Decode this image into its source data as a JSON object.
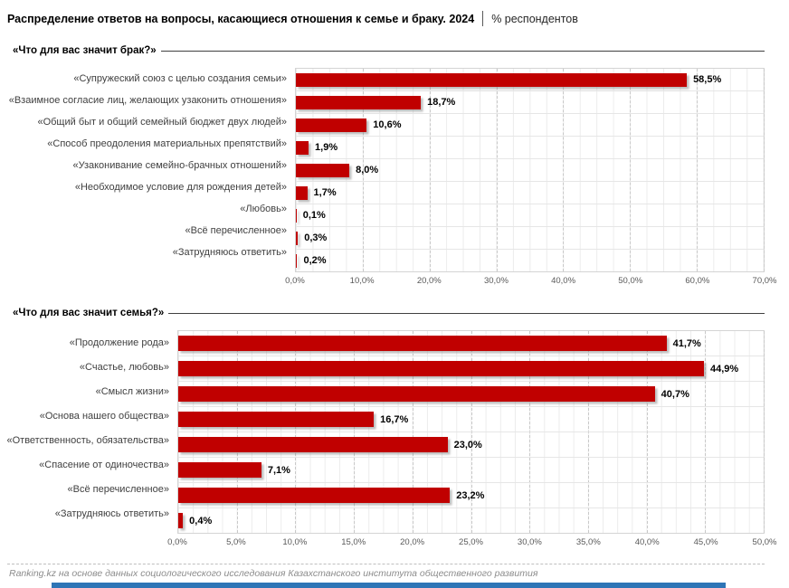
{
  "page": {
    "title": "Распределение ответов на вопросы, касающиеся отношения к семье и браку. 2024",
    "title_suffix": "% респондентов",
    "footer": "Ranking.kz на основе данных социологического исследования Казахстанского института общественного развития"
  },
  "colors": {
    "bar": "#C00000",
    "accent_bottom_bar": "#2E75B6",
    "major_gridline": "#C9C9C9",
    "minor_gridline": "#ECECEC"
  },
  "chart_data": [
    {
      "type": "bar",
      "orientation": "horizontal",
      "title": "«Что для вас значит брак?»",
      "categories": [
        "«Супружеский союз с целью создания семьи»",
        "«Взаимное согласие лиц, желающих узаконить отношения»",
        "«Общий быт и общий семейный бюджет двух людей»",
        "«Способ преодоления материальных препятствий»",
        "«Узаконивание семейно-брачных отношений»",
        "«Необходимое условие для рождения детей»",
        "«Любовь»",
        "«Всё перечисленное»",
        "«Затрудняюсь ответить»"
      ],
      "values": [
        58.5,
        18.7,
        10.6,
        1.9,
        8.0,
        1.7,
        0.1,
        0.3,
        0.2
      ],
      "value_labels": [
        "58,5%",
        "18,7%",
        "10,6%",
        "1,9%",
        "8,0%",
        "1,7%",
        "0,1%",
        "0,3%",
        "0,2%"
      ],
      "xlabel": "",
      "ylabel": "",
      "xlim": [
        0,
        70
      ],
      "xticks": [
        "0,0%",
        "10,0%",
        "20,0%",
        "30,0%",
        "40,0%",
        "50,0%",
        "60,0%",
        "70,0%"
      ],
      "grid": true,
      "bar_color": "#C00000"
    },
    {
      "type": "bar",
      "orientation": "horizontal",
      "title": "«Что для вас значит семья?»",
      "categories": [
        "«Продолжение рода»",
        "«Счастье, любовь»",
        "«Смысл жизни»",
        "«Основа нашего общества»",
        "«Ответственность, обязательства»",
        "«Спасение от одиночества»",
        "«Всё перечисленное»",
        "«Затрудняюсь ответить»"
      ],
      "values": [
        41.7,
        44.9,
        40.7,
        16.7,
        23.0,
        7.1,
        23.2,
        0.4
      ],
      "value_labels": [
        "41,7%",
        "44,9%",
        "40,7%",
        "16,7%",
        "23,0%",
        "7,1%",
        "23,2%",
        "0,4%"
      ],
      "xlabel": "",
      "ylabel": "",
      "xlim": [
        0,
        50
      ],
      "xticks": [
        "0,0%",
        "5,0%",
        "10,0%",
        "15,0%",
        "20,0%",
        "25,0%",
        "30,0%",
        "35,0%",
        "40,0%",
        "45,0%",
        "50,0%"
      ],
      "grid": true,
      "bar_color": "#C00000"
    }
  ]
}
